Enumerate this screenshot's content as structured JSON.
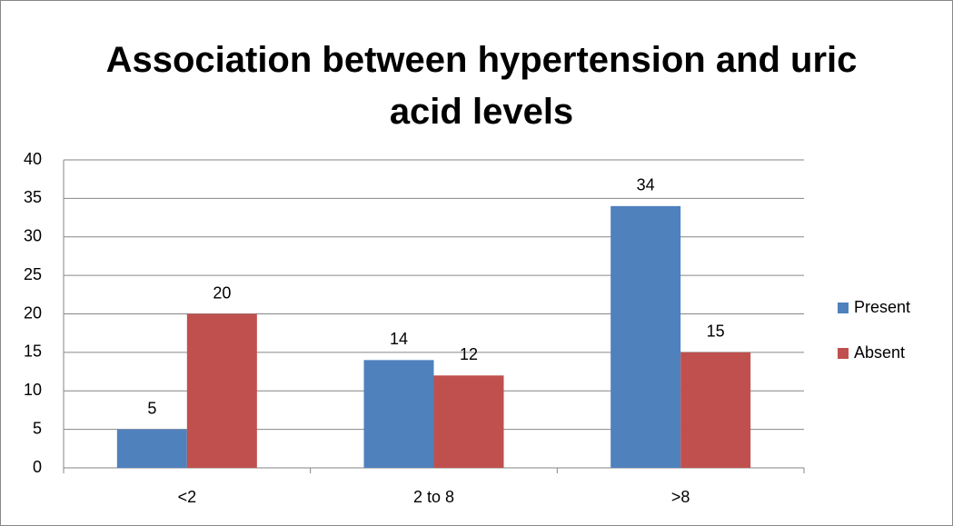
{
  "chart_data": {
    "type": "bar",
    "title": "Association between hypertension and uric acid levels",
    "categories": [
      "<2",
      "2 to 8",
      ">8"
    ],
    "series": [
      {
        "name": "Present",
        "color": "#4f81bd",
        "values": [
          5,
          14,
          34
        ]
      },
      {
        "name": "Absent",
        "color": "#c0504d",
        "values": [
          20,
          12,
          15
        ]
      }
    ],
    "ylim": [
      0,
      40
    ],
    "yticks": [
      0,
      5,
      10,
      15,
      20,
      25,
      30,
      35,
      40
    ],
    "grid": true,
    "legend": "right"
  }
}
